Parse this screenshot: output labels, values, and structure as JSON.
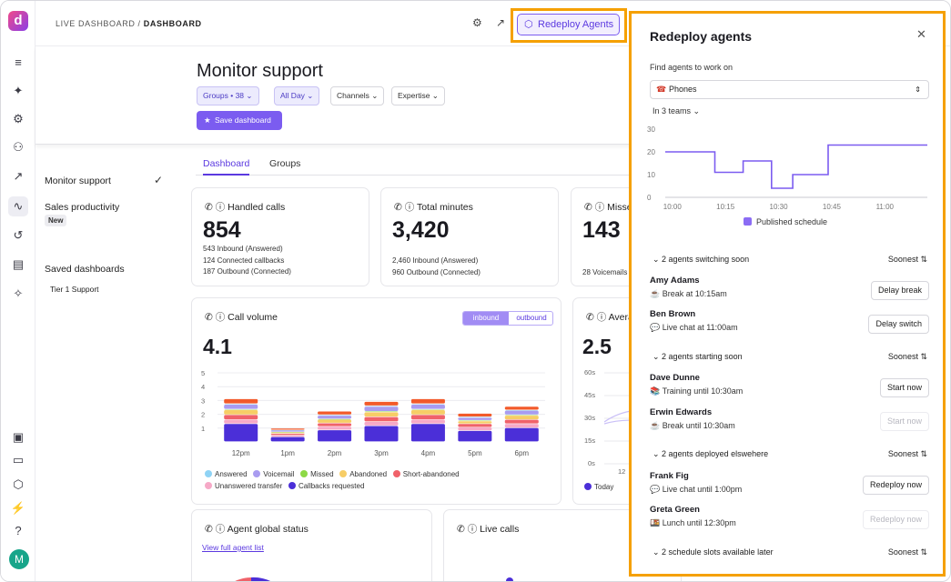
{
  "breadcrumb": {
    "parent": "LIVE DASHBOARD",
    "sep": " / ",
    "current": "DASHBOARD"
  },
  "topbar": {
    "redeploy_label": "Redeploy Agents"
  },
  "rail": {
    "avatar": "M",
    "logo": "d"
  },
  "page": {
    "title": "Monitor support",
    "filters": [
      "Groups • 38",
      "All Day",
      "Channels",
      "Expertise"
    ],
    "save_label": "Save dashboard"
  },
  "sidebar": {
    "items": [
      {
        "label": "Monitor support"
      },
      {
        "label": "Sales productivity",
        "badge": "New"
      }
    ],
    "saved_header": "Saved dashboards",
    "saved_items": [
      "Tier 1 Support"
    ]
  },
  "tabs": [
    "Dashboard",
    "Groups"
  ],
  "cards": {
    "handled": {
      "title": "Handled calls",
      "value": "854",
      "lines": [
        "543 Inbound (Answered)",
        "124 Connected callbacks",
        "187 Outbound (Connected)"
      ]
    },
    "minutes": {
      "title": "Total minutes",
      "value": "3,420",
      "lines": [
        "2,460 Inbound (Answered)",
        "960 Outbound (Connected)"
      ]
    },
    "missed": {
      "title": "Misse",
      "value": "143",
      "lines": [
        "28 Voicemails"
      ]
    },
    "volume": {
      "title": "Call volume",
      "value": "4.1",
      "toggle": [
        "inbound",
        "outbound"
      ],
      "legend": [
        "Answered",
        "Voicemail",
        "Missed",
        "Abandoned",
        "Short-abandoned",
        "Unanswered transfer",
        "Callbacks requested"
      ]
    },
    "average": {
      "title": "Avera",
      "value": "2.5",
      "yticks": [
        "60s",
        "45s",
        "30s",
        "15s",
        "0s"
      ],
      "legend": "Today",
      "xtick": "12"
    },
    "status": {
      "title": "Agent global status",
      "link": "View full agent list"
    },
    "live": {
      "title": "Live calls"
    }
  },
  "chart_data": [
    {
      "type": "bar",
      "title": "Call volume",
      "categories": [
        "12pm",
        "1pm",
        "2pm",
        "3pm",
        "4pm",
        "5pm",
        "6pm"
      ],
      "ylim": [
        0,
        5
      ],
      "yticks": [
        "5",
        "4",
        "3",
        "2",
        "1"
      ],
      "series": [
        {
          "name": "Callbacks requested",
          "color": "#4b2fd8",
          "values": [
            1.3,
            0.35,
            0.85,
            1.15,
            1.3,
            0.8,
            1.0
          ]
        },
        {
          "name": "Unanswered transfer",
          "color": "#f6a9c7",
          "values": [
            0.3,
            0.12,
            0.25,
            0.3,
            0.3,
            0.25,
            0.3
          ]
        },
        {
          "name": "Short-abandoned",
          "color": "#f0626a",
          "values": [
            0.35,
            0.12,
            0.25,
            0.35,
            0.35,
            0.25,
            0.3
          ]
        },
        {
          "name": "Abandoned",
          "color": "#f7cd66",
          "values": [
            0.35,
            0.1,
            0.25,
            0.35,
            0.35,
            0.2,
            0.3
          ]
        },
        {
          "name": "Missed",
          "color": "#8dd946",
          "values": [
            0.05,
            0.02,
            0.05,
            0.05,
            0.05,
            0.05,
            0.05
          ]
        },
        {
          "name": "Voicemail",
          "color": "#a99cf0",
          "values": [
            0.35,
            0.12,
            0.25,
            0.35,
            0.35,
            0.2,
            0.3
          ]
        },
        {
          "name": "Answered",
          "color": "#8fd3f5",
          "values": [
            0.05,
            0.02,
            0.05,
            0.05,
            0.05,
            0.05,
            0.05
          ]
        },
        {
          "name": "Short-abandoned",
          "color": "#f25a2a",
          "values": [
            0.35,
            0.12,
            0.25,
            0.3,
            0.35,
            0.25,
            0.25
          ]
        }
      ]
    },
    {
      "type": "line",
      "title": "",
      "x": [
        "10:00",
        "10:15",
        "10:30",
        "10:45",
        "11:00"
      ],
      "ylim": [
        0,
        30
      ],
      "yticks": [
        "30",
        "20",
        "10",
        "0"
      ],
      "series": [
        {
          "name": "Published schedule",
          "color": "#7b5cf0",
          "points": [
            [
              "09:58",
              20
            ],
            [
              "10:12",
              20
            ],
            [
              "10:12",
              11
            ],
            [
              "10:20",
              11
            ],
            [
              "10:20",
              16
            ],
            [
              "10:28",
              16
            ],
            [
              "10:28",
              4
            ],
            [
              "10:34",
              4
            ],
            [
              "10:34",
              10
            ],
            [
              "10:44",
              10
            ],
            [
              "10:44",
              23
            ],
            [
              "11:12",
              23
            ]
          ]
        }
      ]
    }
  ],
  "panel": {
    "title": "Redeploy agents",
    "find_label": "Find agents to work on",
    "select_value": "Phones",
    "teams": "In 3 teams",
    "legend": "Published schedule",
    "sort_label": "Soonest",
    "sections": [
      {
        "label": "2 agents switching soon",
        "agents": [
          {
            "name": "Amy Adams",
            "status": "Break at 10:15am",
            "action": "Delay break",
            "disabled": false
          },
          {
            "name": "Ben Brown",
            "status": "Live chat at 11:00am",
            "action": "Delay switch",
            "disabled": false
          }
        ]
      },
      {
        "label": "2 agents starting soon",
        "agents": [
          {
            "name": "Dave Dunne",
            "status": "Training until 10:30am",
            "action": "Start now",
            "disabled": false
          },
          {
            "name": "Erwin Edwards",
            "status": "Break until 10:30am",
            "action": "Start now",
            "disabled": true
          }
        ]
      },
      {
        "label": "2 agents deployed elswehere",
        "agents": [
          {
            "name": "Frank Fig",
            "status": "Live chat until 1:00pm",
            "action": "Redeploy now",
            "disabled": false
          },
          {
            "name": "Greta Green",
            "status": "Lunch until 12:30pm",
            "action": "Redeploy now",
            "disabled": true
          }
        ]
      },
      {
        "label": "2 schedule slots available later",
        "agents": []
      }
    ]
  },
  "colors": {
    "accent": "#7b5cf0",
    "highlight": "#f5a000"
  }
}
